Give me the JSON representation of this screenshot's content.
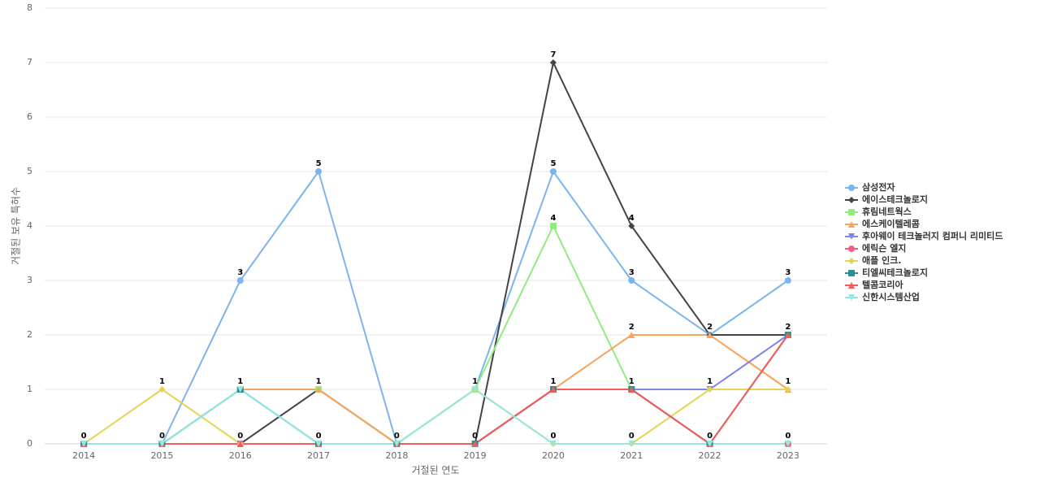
{
  "chart_data": {
    "type": "line",
    "x_label": "거절된 연도",
    "y_label": "거절된 보유 특허수",
    "categories": [
      "2014",
      "2015",
      "2016",
      "2017",
      "2018",
      "2019",
      "2020",
      "2021",
      "2022",
      "2023"
    ],
    "ylim": [
      0,
      8
    ],
    "yticks": [
      0,
      1,
      2,
      3,
      4,
      5,
      6,
      7,
      8
    ],
    "grid": true,
    "legend": "right",
    "series": [
      {
        "name": "삼성전자",
        "color": "#7cb5ec",
        "marker": "circle",
        "values": [
          0,
          0,
          3,
          5,
          0,
          1,
          5,
          3,
          2,
          3
        ]
      },
      {
        "name": "에이스테크놀로지",
        "color": "#434348",
        "marker": "diamond",
        "values": [
          0,
          0,
          0,
          1,
          0,
          0,
          7,
          4,
          2,
          2
        ]
      },
      {
        "name": "휴림네트웍스",
        "color": "#90ed7d",
        "marker": "square",
        "values": [
          0,
          0,
          1,
          1,
          0,
          1,
          4,
          1,
          0,
          0
        ]
      },
      {
        "name": "에스케이텔레콤",
        "color": "#f7a35c",
        "marker": "triangle",
        "values": [
          0,
          0,
          1,
          1,
          0,
          0,
          1,
          2,
          2,
          1
        ]
      },
      {
        "name": "후아웨이 테크놀러지 컴퍼니 리미티드",
        "color": "#8085e9",
        "marker": "triangle-down",
        "values": [
          0,
          0,
          0,
          0,
          0,
          0,
          1,
          1,
          1,
          2
        ]
      },
      {
        "name": "에릭슨 엘지",
        "color": "#f15c80",
        "marker": "circle",
        "values": [
          0,
          0,
          0,
          0,
          0,
          0,
          1,
          1,
          0,
          0
        ]
      },
      {
        "name": "애플 인크.",
        "color": "#e4d354",
        "marker": "diamond",
        "values": [
          0,
          1,
          0,
          0,
          0,
          1,
          0,
          0,
          1,
          1
        ]
      },
      {
        "name": "티엘씨테크놀로지",
        "color": "#2b908f",
        "marker": "square",
        "values": [
          0,
          0,
          1,
          0,
          0,
          0,
          1,
          1,
          0,
          2
        ]
      },
      {
        "name": "텔콤코리아",
        "color": "#f45b5b",
        "marker": "triangle",
        "values": [
          0,
          0,
          0,
          0,
          0,
          0,
          1,
          1,
          0,
          2
        ]
      },
      {
        "name": "신한시스템산업",
        "color": "#91e8e1",
        "marker": "triangle-down",
        "values": [
          0,
          0,
          1,
          0,
          0,
          1,
          0,
          0,
          0,
          0
        ]
      }
    ]
  }
}
